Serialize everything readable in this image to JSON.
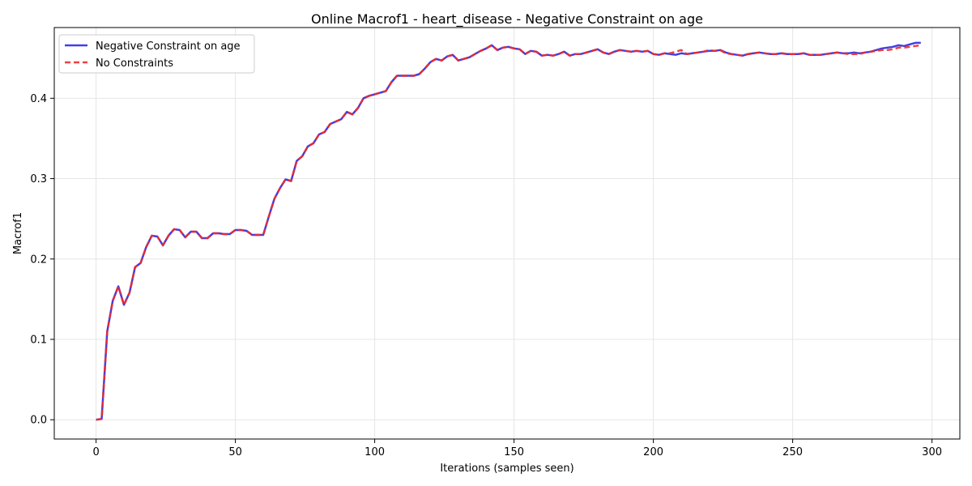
{
  "chart_data": {
    "type": "line",
    "title": "Online Macrof1 - heart_disease - Negative Constraint on age",
    "xlabel": "Iterations (samples seen)",
    "ylabel": "Macrof1",
    "xlim": [
      -15,
      310
    ],
    "ylim": [
      -0.024,
      0.488
    ],
    "xticks": [
      0,
      50,
      100,
      150,
      200,
      250,
      300
    ],
    "yticks": [
      0.0,
      0.1,
      0.2,
      0.3,
      0.4
    ],
    "ytick_labels": [
      "0.0",
      "0.1",
      "0.2",
      "0.3",
      "0.4"
    ],
    "grid": true,
    "legend_position": "top-left",
    "series": [
      {
        "name": "Negative Constraint on age",
        "color": "#2a2ae6",
        "style": "solid",
        "x": [
          0,
          2,
          4,
          6,
          8,
          10,
          12,
          14,
          16,
          18,
          20,
          22,
          24,
          26,
          28,
          30,
          32,
          34,
          36,
          38,
          40,
          42,
          44,
          46,
          48,
          50,
          52,
          54,
          56,
          58,
          60,
          62,
          64,
          66,
          68,
          70,
          72,
          74,
          76,
          78,
          80,
          82,
          84,
          86,
          88,
          90,
          92,
          94,
          96,
          98,
          100,
          102,
          104,
          106,
          108,
          110,
          112,
          114,
          116,
          118,
          120,
          122,
          124,
          126,
          128,
          130,
          132,
          134,
          136,
          138,
          140,
          142,
          144,
          146,
          148,
          150,
          152,
          154,
          156,
          158,
          160,
          162,
          164,
          166,
          168,
          170,
          172,
          174,
          176,
          178,
          180,
          182,
          184,
          186,
          188,
          190,
          192,
          194,
          196,
          198,
          200,
          202,
          204,
          206,
          208,
          210,
          212,
          214,
          216,
          218,
          220,
          222,
          224,
          226,
          228,
          230,
          232,
          234,
          236,
          238,
          240,
          242,
          244,
          246,
          248,
          250,
          252,
          254,
          256,
          258,
          260,
          262,
          264,
          266,
          268,
          270,
          272,
          274,
          276,
          278,
          280,
          282,
          284,
          286,
          288,
          290,
          292,
          294,
          296
        ],
        "y": [
          0.0,
          0.001,
          0.11,
          0.148,
          0.166,
          0.143,
          0.158,
          0.19,
          0.195,
          0.215,
          0.229,
          0.228,
          0.217,
          0.229,
          0.237,
          0.236,
          0.227,
          0.234,
          0.234,
          0.226,
          0.226,
          0.232,
          0.232,
          0.231,
          0.231,
          0.236,
          0.236,
          0.235,
          0.23,
          0.23,
          0.23,
          0.253,
          0.275,
          0.288,
          0.299,
          0.297,
          0.322,
          0.328,
          0.34,
          0.344,
          0.355,
          0.358,
          0.368,
          0.371,
          0.374,
          0.383,
          0.38,
          0.388,
          0.4,
          0.403,
          0.405,
          0.407,
          0.409,
          0.42,
          0.428,
          0.428,
          0.428,
          0.428,
          0.43,
          0.437,
          0.445,
          0.449,
          0.447,
          0.452,
          0.454,
          0.447,
          0.449,
          0.451,
          0.455,
          0.459,
          0.462,
          0.466,
          0.46,
          0.463,
          0.464,
          0.462,
          0.461,
          0.455,
          0.459,
          0.458,
          0.453,
          0.454,
          0.453,
          0.455,
          0.458,
          0.453,
          0.455,
          0.455,
          0.457,
          0.459,
          0.461,
          0.457,
          0.455,
          0.458,
          0.46,
          0.459,
          0.458,
          0.459,
          0.458,
          0.459,
          0.455,
          0.454,
          0.456,
          0.455,
          0.454,
          0.456,
          0.455,
          0.456,
          0.457,
          0.458,
          0.459,
          0.459,
          0.46,
          0.457,
          0.455,
          0.454,
          0.453,
          0.455,
          0.456,
          0.457,
          0.456,
          0.455,
          0.455,
          0.456,
          0.455,
          0.455,
          0.455,
          0.456,
          0.454,
          0.454,
          0.454,
          0.455,
          0.456,
          0.457,
          0.456,
          0.456,
          0.457,
          0.456,
          0.457,
          0.458,
          0.46,
          0.462,
          0.463,
          0.464,
          0.466,
          0.465,
          0.467,
          0.469,
          0.469
        ]
      },
      {
        "name": "No Constraints",
        "color": "#ee2a2a",
        "style": "dashed",
        "x": [
          0,
          2,
          4,
          6,
          8,
          10,
          12,
          14,
          16,
          18,
          20,
          22,
          24,
          26,
          28,
          30,
          32,
          34,
          36,
          38,
          40,
          42,
          44,
          46,
          48,
          50,
          52,
          54,
          56,
          58,
          60,
          62,
          64,
          66,
          68,
          70,
          72,
          74,
          76,
          78,
          80,
          82,
          84,
          86,
          88,
          90,
          92,
          94,
          96,
          98,
          100,
          102,
          104,
          106,
          108,
          110,
          112,
          114,
          116,
          118,
          120,
          122,
          124,
          126,
          128,
          130,
          132,
          134,
          136,
          138,
          140,
          142,
          144,
          146,
          148,
          150,
          152,
          154,
          156,
          158,
          160,
          162,
          164,
          166,
          168,
          170,
          172,
          174,
          176,
          178,
          180,
          182,
          184,
          186,
          188,
          190,
          192,
          194,
          196,
          198,
          200,
          202,
          204,
          206,
          208,
          210,
          212,
          214,
          216,
          218,
          220,
          222,
          224,
          226,
          228,
          230,
          232,
          234,
          236,
          238,
          240,
          242,
          244,
          246,
          248,
          250,
          252,
          254,
          256,
          258,
          260,
          262,
          264,
          266,
          268,
          270,
          272,
          274,
          276,
          278,
          280,
          282,
          284,
          286,
          288,
          290,
          292,
          294,
          296
        ],
        "y": [
          0.0,
          0.001,
          0.11,
          0.148,
          0.166,
          0.143,
          0.158,
          0.19,
          0.195,
          0.215,
          0.229,
          0.228,
          0.217,
          0.229,
          0.237,
          0.236,
          0.227,
          0.234,
          0.234,
          0.226,
          0.226,
          0.232,
          0.232,
          0.231,
          0.231,
          0.236,
          0.236,
          0.235,
          0.23,
          0.23,
          0.23,
          0.253,
          0.275,
          0.288,
          0.299,
          0.297,
          0.322,
          0.328,
          0.34,
          0.344,
          0.355,
          0.358,
          0.368,
          0.371,
          0.374,
          0.383,
          0.38,
          0.388,
          0.4,
          0.403,
          0.405,
          0.407,
          0.409,
          0.42,
          0.428,
          0.428,
          0.428,
          0.428,
          0.43,
          0.437,
          0.445,
          0.449,
          0.447,
          0.452,
          0.454,
          0.447,
          0.449,
          0.451,
          0.455,
          0.459,
          0.462,
          0.466,
          0.46,
          0.463,
          0.464,
          0.462,
          0.461,
          0.455,
          0.459,
          0.458,
          0.453,
          0.454,
          0.453,
          0.455,
          0.458,
          0.453,
          0.455,
          0.455,
          0.457,
          0.459,
          0.461,
          0.457,
          0.455,
          0.458,
          0.46,
          0.459,
          0.458,
          0.459,
          0.458,
          0.459,
          0.455,
          0.454,
          0.456,
          0.456,
          0.458,
          0.46,
          0.455,
          0.456,
          0.457,
          0.458,
          0.46,
          0.459,
          0.46,
          0.456,
          0.455,
          0.454,
          0.453,
          0.455,
          0.456,
          0.457,
          0.456,
          0.455,
          0.455,
          0.456,
          0.455,
          0.455,
          0.455,
          0.456,
          0.454,
          0.454,
          0.454,
          0.455,
          0.456,
          0.457,
          0.456,
          0.455,
          0.455,
          0.455,
          0.457,
          0.458,
          0.459,
          0.46,
          0.46,
          0.461,
          0.463,
          0.463,
          0.464,
          0.465,
          0.466
        ]
      }
    ]
  }
}
